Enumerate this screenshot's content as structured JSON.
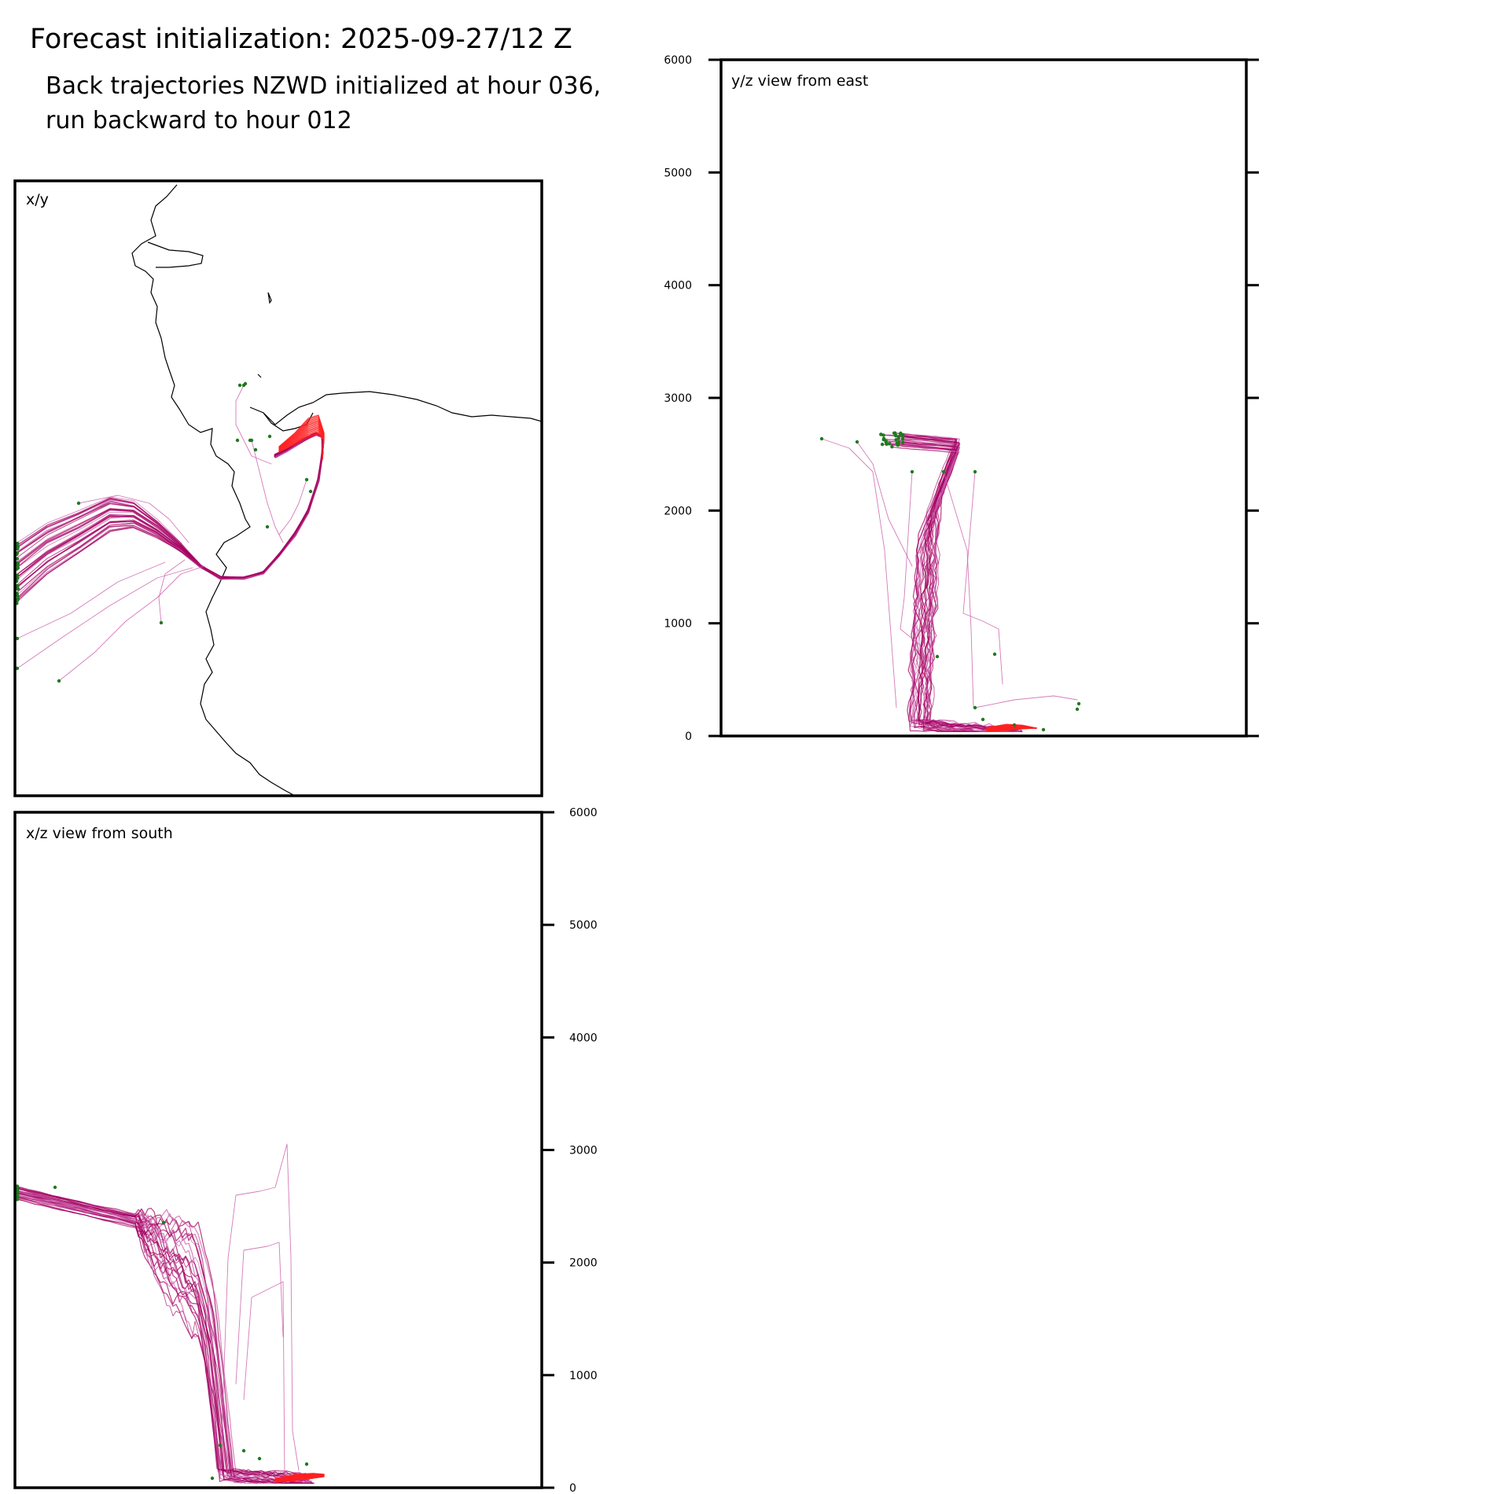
{
  "title": "Forecast initialization: 2025-09-27/12 Z",
  "subtitle": "Back trajectories NZWD initialized at hour 036, run backward to hour 012",
  "colors": {
    "trajectory": "#a3005f",
    "trajectory_light": "#c95aa8",
    "initial_segment": "#ff2020",
    "endpoint": "#1f7a1f",
    "coastline": "#000000",
    "frame": "#000000"
  },
  "chart_data": [
    {
      "type": "scatter",
      "panel": "xy",
      "label": "x/y",
      "description_hidden": true
    },
    {
      "type": "line",
      "panel": "xz",
      "label": "x/z view from south",
      "ylim": [
        0,
        6000
      ],
      "yticks": [
        "0",
        "1000",
        "2000",
        "3000",
        "4000",
        "5000",
        "6000"
      ],
      "tick_side": "right"
    },
    {
      "type": "line",
      "panel": "yz",
      "label": "y/z view from east",
      "ylim": [
        0,
        6000
      ],
      "yticks": [
        "0",
        "1000",
        "2000",
        "3000",
        "4000",
        "5000",
        "6000"
      ],
      "tick_side": "left"
    }
  ]
}
